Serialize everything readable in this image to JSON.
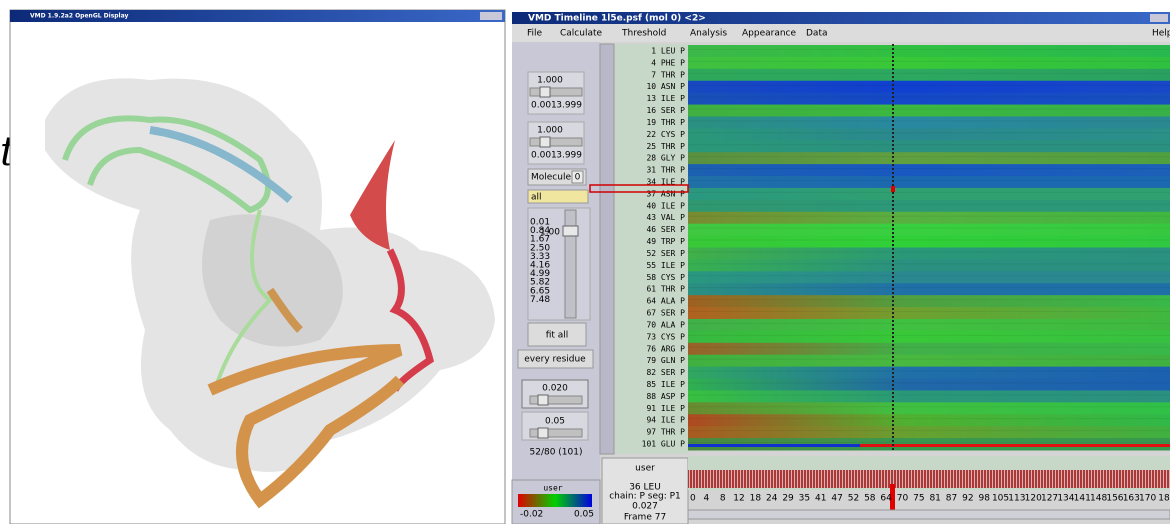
{
  "background_text": "t",
  "left_window": {
    "title": "VMD 1.9.2a2 OpenGL Display"
  },
  "right_window": {
    "title": "VMD Timeline  1l5e.psf (mol 0)  <2>",
    "menu": [
      "File",
      "Calculate",
      "Threshold",
      "Analysis",
      "Appearance",
      "Data",
      "Help"
    ]
  },
  "controls": {
    "scale1": {
      "value": "1.000",
      "min": "0.001",
      "max": "3.999"
    },
    "scale2": {
      "value": "1.000",
      "min": "0.001",
      "max": "3.999"
    },
    "molecule_label": "Molecule:",
    "molecule": "0",
    "selection": "all",
    "levels": [
      "0.01",
      "0.84",
      "1.67",
      "2.50",
      "3.33",
      "4.16",
      "4.99",
      "5.82",
      "6.65",
      "7.48"
    ],
    "level_value": "1.00",
    "fit_button": "fit all",
    "mode_button": "every residue",
    "threshold1": "0.020",
    "threshold2": "0.05",
    "count": "52/80 (101)",
    "colorbar": {
      "label": "user",
      "min": "-0.02",
      "max": "0.05"
    }
  },
  "residues": [
    "1 LEU P",
    "4 PHE P",
    "7 THR P",
    "10 ASN P",
    "13 ILE P",
    "16 SER P",
    "19 THR P",
    "22 CYS P",
    "25 THR P",
    "28 GLY P",
    "31 THR P",
    "34 ILE P",
    "37 ASN P",
    "40 ILE P",
    "43 VAL P",
    "46 SER P",
    "49 TRP P",
    "52 SER P",
    "55 ILE P",
    "58 CYS P",
    "61 THR P",
    "64 ALA P",
    "67 SER P",
    "70 ALA P",
    "73 CYS P",
    "76 ARG P",
    "79 GLN P",
    "82 SER P",
    "85 ILE P",
    "88 ASP P",
    "91 ILE P",
    "94 ILE P",
    "97 THR P",
    "101 GLU P"
  ],
  "info": {
    "label": "user",
    "residue": "36 LEU",
    "chain": "chain: P  seg: P1",
    "value": "0.027",
    "frame": "Frame   77"
  },
  "frame_axis": [
    "0",
    "4",
    "8",
    "12",
    "18",
    "24",
    "29",
    "35",
    "41",
    "47",
    "52",
    "58",
    "64",
    "70",
    "75",
    "81",
    "87",
    "92",
    "98",
    "105",
    "113",
    "120",
    "127",
    "134",
    "141",
    "148",
    "156",
    "163",
    "170",
    "18"
  ]
}
